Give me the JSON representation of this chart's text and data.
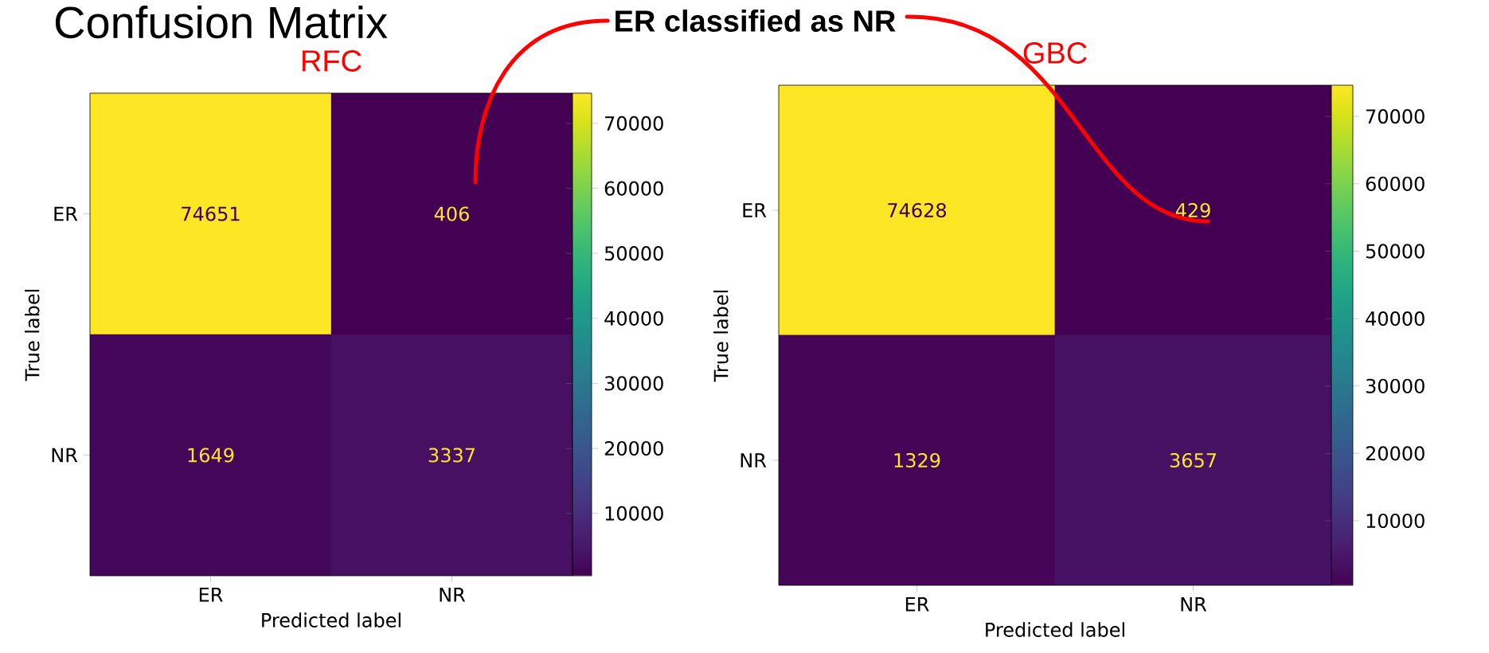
{
  "chart_data": [
    {
      "type": "heatmap",
      "title": "RFC",
      "xlabel": "Predicted label",
      "ylabel": "True label",
      "categories": [
        "ER",
        "NR"
      ],
      "y_categories": [
        "ER",
        "NR"
      ],
      "cells": [
        [
          74651,
          406
        ],
        [
          1649,
          3337
        ]
      ],
      "clim": [
        406,
        74651
      ],
      "cticks": [
        10000,
        20000,
        30000,
        40000,
        50000,
        60000,
        70000
      ],
      "data_labels": true,
      "annotations": [
        "Confusion Matrix",
        "ER classified as NR"
      ]
    },
    {
      "type": "heatmap",
      "title": "GBC",
      "xlabel": "Predicted label",
      "ylabel": "True label",
      "categories": [
        "ER",
        "NR"
      ],
      "y_categories": [
        "ER",
        "NR"
      ],
      "cells": [
        [
          74628,
          429
        ],
        [
          1329,
          3657
        ]
      ],
      "clim": [
        429,
        74628
      ],
      "cticks": [
        10000,
        20000,
        30000,
        40000,
        50000,
        60000,
        70000
      ],
      "data_labels": true
    }
  ]
}
